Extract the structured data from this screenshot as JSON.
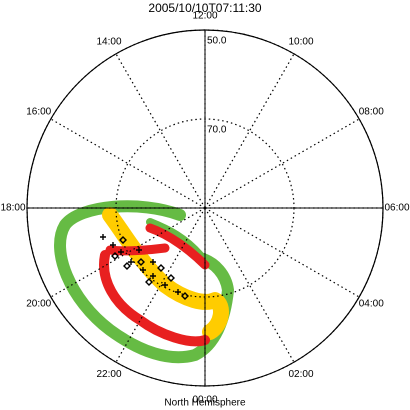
{
  "chart_data": {
    "type": "polar",
    "title": "2005/10/10T07:11:30",
    "xlabel": "North Hemisphere",
    "thetalim": [
      0,
      24
    ],
    "thetaticks": [
      {
        "value": 0,
        "label": "00:00"
      },
      {
        "value": 2,
        "label": "02:00"
      },
      {
        "value": 4,
        "label": "04:00"
      },
      {
        "value": 6,
        "label": "06:00"
      },
      {
        "value": 8,
        "label": "08:00"
      },
      {
        "value": 10,
        "label": "10:00"
      },
      {
        "value": 12,
        "label": "12:00"
      },
      {
        "value": 14,
        "label": "14:00"
      },
      {
        "value": 16,
        "label": "16:00"
      },
      {
        "value": 18,
        "label": "18:00"
      },
      {
        "value": 20,
        "label": "20:00"
      },
      {
        "value": 22,
        "label": "22:00"
      }
    ],
    "rlim": [
      90,
      50
    ],
    "rticks": [
      {
        "value": 70,
        "label": "70.0"
      },
      {
        "value": 50,
        "label": "50.0"
      }
    ]
  }
}
